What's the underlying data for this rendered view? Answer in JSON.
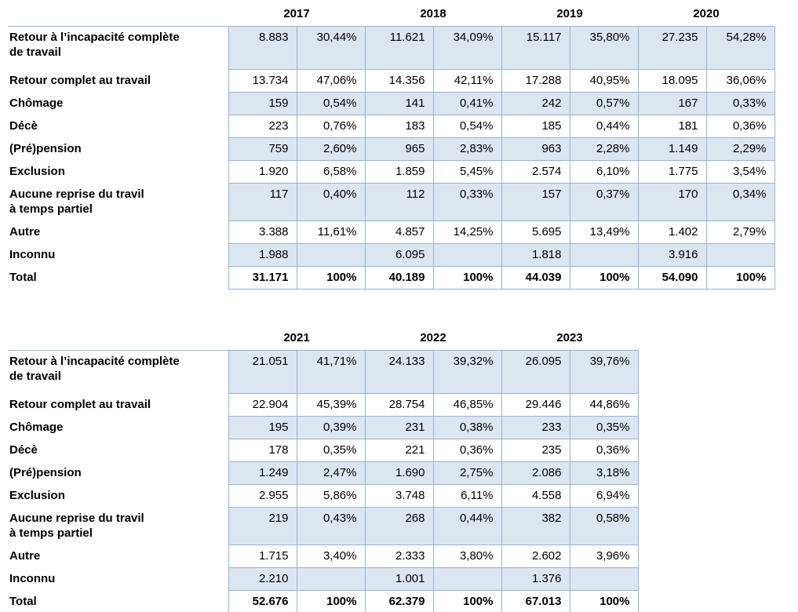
{
  "colors": {
    "row_fill": "#dce6f1",
    "grid_border": "#95b3d7",
    "text": "#000000",
    "background": "#ffffff"
  },
  "tables": [
    {
      "title": "Sorties 2017-2020",
      "years": [
        "2017",
        "2018",
        "2019",
        "2020"
      ],
      "rows": [
        {
          "label": "Retour à l’incapacité complète\nde travail",
          "cells": [
            "8.883",
            "30,44%",
            "11.621",
            "34,09%",
            "15.117",
            "35,80%",
            "27.235",
            "54,28%"
          ]
        },
        {
          "label": "Retour complet au travail",
          "cells": [
            "13.734",
            "47,06%",
            "14.356",
            "42,11%",
            "17.288",
            "40,95%",
            "18.095",
            "36,06%"
          ]
        },
        {
          "label": "Chômage",
          "cells": [
            "159",
            "0,54%",
            "141",
            "0,41%",
            "242",
            "0,57%",
            "167",
            "0,33%"
          ]
        },
        {
          "label": "Décè",
          "cells": [
            "223",
            "0,76%",
            "183",
            "0,54%",
            "185",
            "0,44%",
            "181",
            "0,36%"
          ]
        },
        {
          "label": "(Pré)pension",
          "cells": [
            "759",
            "2,60%",
            "965",
            "2,83%",
            "963",
            "2,28%",
            "1.149",
            "2,29%"
          ]
        },
        {
          "label": "Exclusion",
          "cells": [
            "1.920",
            "6,58%",
            "1.859",
            "5,45%",
            "2.574",
            "6,10%",
            "1.775",
            "3,54%"
          ]
        },
        {
          "label": "Aucune reprise du travil\nà temps partiel",
          "cells": [
            "117",
            "0,40%",
            "112",
            "0,33%",
            "157",
            "0,37%",
            "170",
            "0,34%"
          ]
        },
        {
          "label": "Autre",
          "cells": [
            "3.388",
            "11,61%",
            "4.857",
            "14,25%",
            "5.695",
            "13,49%",
            "1.402",
            "2,79%"
          ]
        },
        {
          "label": "Inconnu",
          "cells": [
            "1.988",
            "",
            "6.095",
            "",
            "1.818",
            "",
            "3.916",
            ""
          ]
        },
        {
          "label": "Total",
          "cells": [
            "31.171",
            "100%",
            "40.189",
            "100%",
            "44.039",
            "100%",
            "54.090",
            "100%"
          ],
          "bold": true
        }
      ]
    },
    {
      "title": "Sorties 2021-2023",
      "years": [
        "2021",
        "2022",
        "2023"
      ],
      "rows": [
        {
          "label": "Retour à l’incapacité complète\nde travail",
          "cells": [
            "21.051",
            "41,71%",
            "24.133",
            "39,32%",
            "26.095",
            "39,76%"
          ]
        },
        {
          "label": "Retour complet au travail",
          "cells": [
            "22.904",
            "45,39%",
            "28.754",
            "46,85%",
            "29.446",
            "44,86%"
          ]
        },
        {
          "label": "Chômage",
          "cells": [
            "195",
            "0,39%",
            "231",
            "0,38%",
            "233",
            "0,35%"
          ]
        },
        {
          "label": "Décè",
          "cells": [
            "178",
            "0,35%",
            "221",
            "0,36%",
            "235",
            "0,36%"
          ]
        },
        {
          "label": "(Pré)pension",
          "cells": [
            "1.249",
            "2,47%",
            "1.690",
            "2,75%",
            "2.086",
            "3,18%"
          ]
        },
        {
          "label": "Exclusion",
          "cells": [
            "2.955",
            "5,86%",
            "3.748",
            "6,11%",
            "4.558",
            "6,94%"
          ]
        },
        {
          "label": "Aucune reprise du travil\nà temps partiel",
          "cells": [
            "219",
            "0,43%",
            "268",
            "0,44%",
            "382",
            "0,58%"
          ]
        },
        {
          "label": "Autre",
          "cells": [
            "1.715",
            "3,40%",
            "2.333",
            "3,80%",
            "2.602",
            "3,96%"
          ]
        },
        {
          "label": "Inconnu",
          "cells": [
            "2.210",
            "",
            "1.001",
            "",
            "1.376",
            ""
          ]
        },
        {
          "label": "Total",
          "cells": [
            "52.676",
            "100%",
            "62.379",
            "100%",
            "67.013",
            "100%"
          ],
          "bold": true
        }
      ]
    }
  ]
}
